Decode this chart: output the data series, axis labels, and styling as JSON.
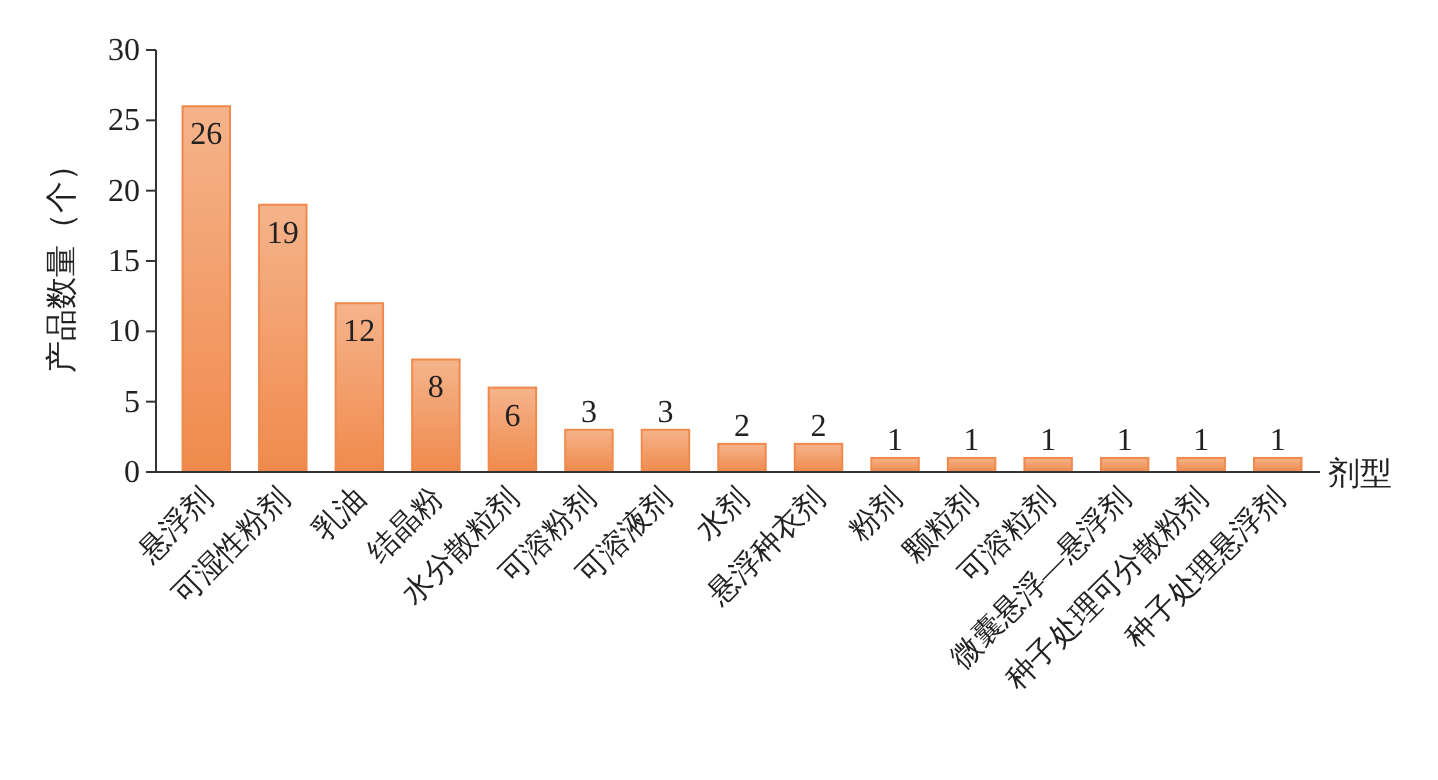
{
  "chart_data": {
    "type": "bar",
    "ylabel": "产品数量（个）",
    "xlabel": "剂型",
    "categories": [
      "悬浮剂",
      "可湿性粉剂",
      "乳油",
      "结晶粉",
      "水分散粒剂",
      "可溶粉剂",
      "可溶液剂",
      "水剂",
      "悬浮种衣剂",
      "粉剂",
      "颗粒剂",
      "可溶粒剂",
      "微囊悬浮—悬浮剂",
      "种子处理可分散粉剂",
      "种子处理悬浮剂"
    ],
    "values": [
      26,
      19,
      12,
      8,
      6,
      3,
      3,
      2,
      2,
      1,
      1,
      1,
      1,
      1,
      1
    ],
    "color": "#f08a4c",
    "ylim": [
      0,
      30
    ],
    "yticks": [
      0,
      5,
      10,
      15,
      20,
      25,
      30
    ],
    "data_labels": true,
    "grid": false
  }
}
